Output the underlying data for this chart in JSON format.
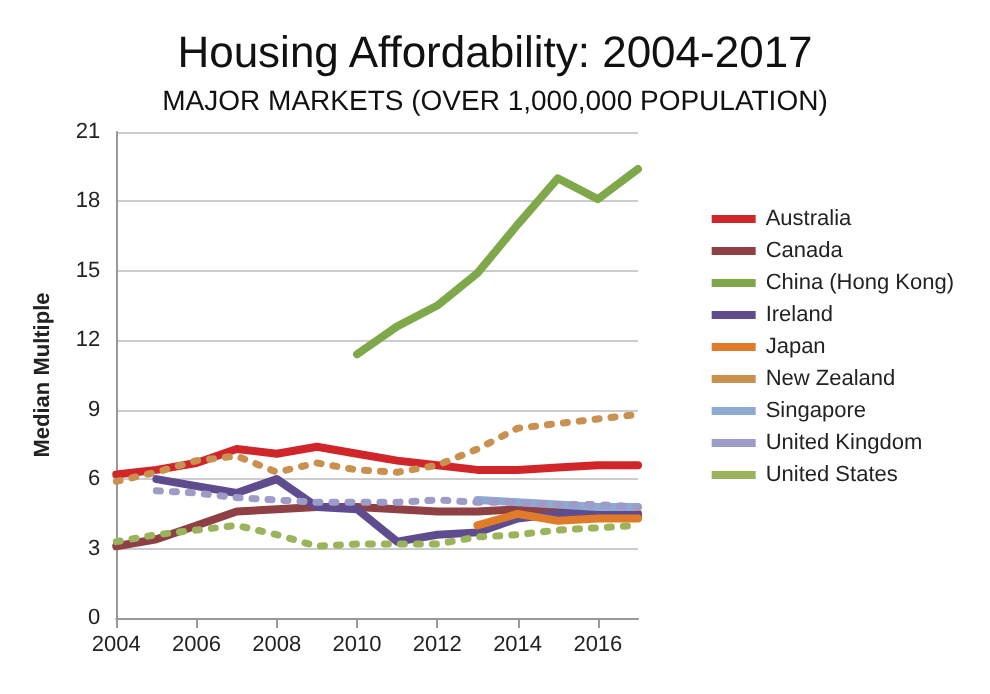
{
  "chart_data": {
    "type": "line",
    "title": "Housing Affordability: 2004-2017",
    "subtitle": "MAJOR MARKETS (OVER 1,000,000 POPULATION)",
    "ylabel": "Median Multiple",
    "x": [
      2004,
      2005,
      2006,
      2007,
      2008,
      2009,
      2010,
      2011,
      2012,
      2013,
      2014,
      2015,
      2016,
      2017
    ],
    "xlim": [
      2004,
      2017
    ],
    "xticks": [
      2004,
      2006,
      2008,
      2010,
      2012,
      2014,
      2016
    ],
    "ylim": [
      0,
      21
    ],
    "yticks": [
      0,
      3,
      6,
      9,
      12,
      15,
      18,
      21
    ],
    "grid": "y",
    "legend": "right",
    "marker": "none",
    "series": [
      {
        "name": "Australia",
        "color": "#d0262a",
        "line_style": "solid",
        "values": [
          6.2,
          6.4,
          6.7,
          7.3,
          7.1,
          7.4,
          7.1,
          6.8,
          6.6,
          6.4,
          6.4,
          6.5,
          6.6,
          6.6
        ]
      },
      {
        "name": "Canada",
        "color": "#8e4044",
        "line_style": "solid",
        "values": [
          3.1,
          3.4,
          4.0,
          4.6,
          4.7,
          4.8,
          4.8,
          4.7,
          4.6,
          4.6,
          4.7,
          4.6,
          4.5,
          4.5
        ]
      },
      {
        "name": "China (Hong Kong)",
        "color": "#7fa84b",
        "line_style": "solid",
        "values": [
          null,
          null,
          null,
          null,
          null,
          null,
          11.4,
          12.6,
          13.5,
          14.9,
          17.0,
          19.0,
          18.1,
          19.4
        ]
      },
      {
        "name": "Ireland",
        "color": "#5f4c8f",
        "line_style": "solid",
        "values": [
          null,
          6.0,
          5.7,
          5.4,
          6.0,
          4.8,
          4.7,
          3.3,
          3.6,
          3.7,
          4.3,
          4.5,
          4.6,
          4.4
        ]
      },
      {
        "name": "Japan",
        "color": "#e07b2a",
        "line_style": "solid",
        "values": [
          null,
          null,
          null,
          null,
          null,
          null,
          null,
          null,
          null,
          4.0,
          4.5,
          4.2,
          4.3,
          4.3
        ]
      },
      {
        "name": "New Zealand",
        "color": "#c99050",
        "line_style": "dotted",
        "values": [
          5.9,
          6.3,
          6.8,
          7.0,
          6.3,
          6.7,
          6.4,
          6.3,
          6.6,
          7.3,
          8.2,
          8.4,
          8.6,
          8.8
        ]
      },
      {
        "name": "Singapore",
        "color": "#8ea9d2",
        "line_style": "solid",
        "values": [
          null,
          null,
          null,
          null,
          null,
          null,
          null,
          null,
          null,
          5.1,
          5.0,
          4.9,
          4.8,
          4.8
        ]
      },
      {
        "name": "United Kingdom",
        "color": "#9d9cc9",
        "line_style": "dotted",
        "values": [
          null,
          5.5,
          5.4,
          5.2,
          5.1,
          5.0,
          5.0,
          5.0,
          5.1,
          5.0,
          5.0,
          4.9,
          4.9,
          4.8
        ]
      },
      {
        "name": "United States",
        "color": "#9bb35a",
        "line_style": "dotted",
        "values": [
          3.3,
          3.6,
          3.8,
          4.0,
          3.6,
          3.1,
          3.2,
          3.2,
          3.2,
          3.5,
          3.6,
          3.8,
          3.9,
          4.0
        ]
      }
    ]
  }
}
